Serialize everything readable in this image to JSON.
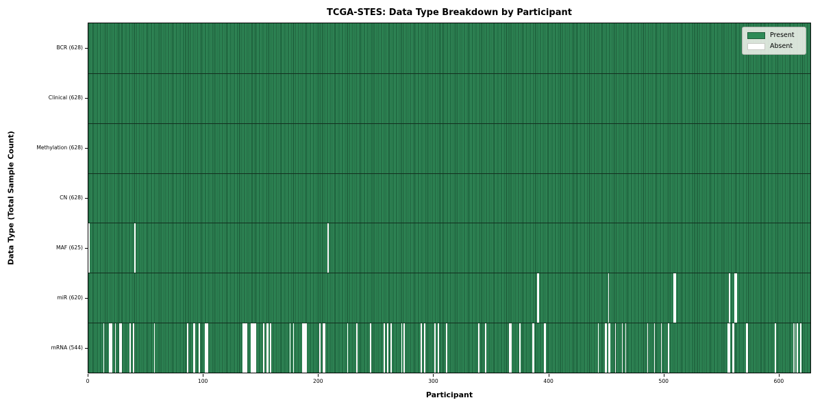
{
  "title": "TCGA-STES: Data Type Breakdown by Participant",
  "x_axis_label": "Participant",
  "y_axis_label": "Data Type (Total Sample Count)",
  "legend": {
    "position": "upper right",
    "present_label": "Present",
    "absent_label": "Absent"
  },
  "colors": {
    "present": "#2E8B57",
    "present_edge": "#15482C",
    "absent": "#FFFFFF",
    "axis": "#000000",
    "background": "#FFFFFF",
    "legend_background": "#F0F1EC"
  },
  "chart_data": {
    "type": "heatmap",
    "title": "TCGA-STES: Data Type Breakdown by Participant",
    "xlabel": "Participant",
    "ylabel": "Data Type (Total Sample Count)",
    "x_ticks": [
      0,
      100,
      200,
      300,
      400,
      500,
      600
    ],
    "x_range": [
      0,
      628
    ],
    "n_participants": 628,
    "grid": false,
    "legend_entries": [
      "Present",
      "Absent"
    ],
    "legend_position": "upper right",
    "rows": [
      {
        "label": "BCR (628)",
        "data_type": "BCR",
        "total_samples": 628,
        "absent_count": 0,
        "absent_indices": []
      },
      {
        "label": "Clinical (628)",
        "data_type": "Clinical",
        "total_samples": 628,
        "absent_count": 0,
        "absent_indices": []
      },
      {
        "label": "Methylation (628)",
        "data_type": "Methylation",
        "total_samples": 628,
        "absent_count": 0,
        "absent_indices": []
      },
      {
        "label": "CN (628)",
        "data_type": "CN",
        "total_samples": 628,
        "absent_count": 0,
        "absent_indices": []
      },
      {
        "label": "MAF (625)",
        "data_type": "MAF",
        "total_samples": 625,
        "absent_count": 3,
        "absent_indices": [
          0,
          40,
          208
        ]
      },
      {
        "label": "miR (620)",
        "data_type": "miR",
        "total_samples": 620,
        "absent_count": 8,
        "absent_indices": [
          390,
          391,
          452,
          509,
          510,
          557,
          562,
          563
        ]
      },
      {
        "label": "mRNA (544)",
        "data_type": "mRNA",
        "total_samples": 544,
        "absent_count": 84,
        "absent_indices": [
          13,
          18,
          19,
          20,
          23,
          27,
          28,
          36,
          39,
          57,
          86,
          91,
          92,
          96,
          101,
          102,
          103,
          134,
          135,
          136,
          137,
          141,
          142,
          143,
          144,
          145,
          152,
          155,
          156,
          158,
          175,
          178,
          186,
          187,
          188,
          189,
          201,
          204,
          205,
          225,
          233,
          245,
          257,
          260,
          263,
          272,
          274,
          289,
          292,
          301,
          304,
          311,
          339,
          345,
          366,
          367,
          375,
          386,
          387,
          396,
          397,
          443,
          449,
          450,
          452,
          453,
          458,
          464,
          467,
          486,
          492,
          498,
          504,
          556,
          557,
          560,
          561,
          572,
          573,
          597,
          613,
          614,
          616,
          619
        ]
      }
    ]
  }
}
